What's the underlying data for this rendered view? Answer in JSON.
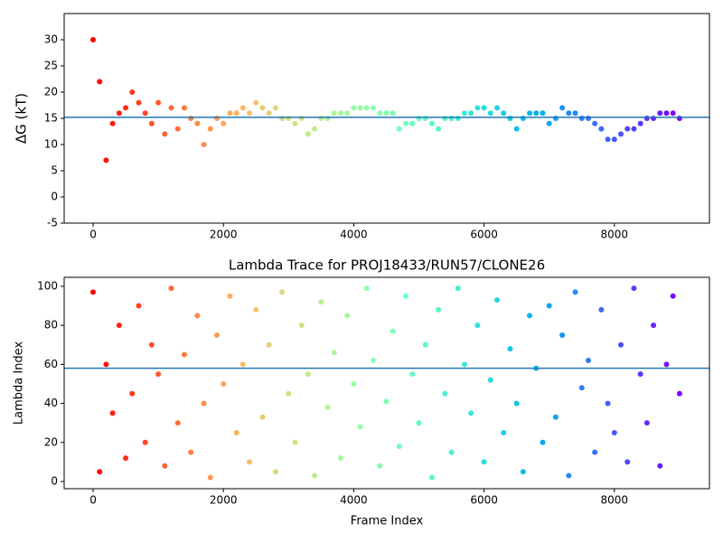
{
  "chart_data": [
    {
      "type": "scatter",
      "ylabel": "ΔG (kT)",
      "colormap": "rainbow",
      "x": [
        0,
        100,
        200,
        300,
        400,
        500,
        600,
        700,
        800,
        900,
        1000,
        1100,
        1200,
        1300,
        1400,
        1500,
        1600,
        1700,
        1800,
        1900,
        2000,
        2100,
        2200,
        2300,
        2400,
        2500,
        2600,
        2700,
        2800,
        2900,
        3000,
        3100,
        3200,
        3300,
        3400,
        3500,
        3600,
        3700,
        3800,
        3900,
        4000,
        4100,
        4200,
        4300,
        4400,
        4500,
        4600,
        4700,
        4800,
        4900,
        5000,
        5100,
        5200,
        5300,
        5400,
        5500,
        5600,
        5700,
        5800,
        5900,
        6000,
        6100,
        6200,
        6300,
        6400,
        6500,
        6600,
        6700,
        6800,
        6900,
        7000,
        7100,
        7200,
        7300,
        7400,
        7500,
        7600,
        7700,
        7800,
        7900,
        8000,
        8100,
        8200,
        8300,
        8400,
        8500,
        8600,
        8700,
        8800,
        8900,
        9000
      ],
      "values": [
        30,
        22,
        7,
        14,
        16,
        17,
        20,
        18,
        16,
        14,
        18,
        12,
        17,
        13,
        17,
        15,
        14,
        10,
        13,
        15,
        14,
        16,
        16,
        17,
        16,
        18,
        17,
        16,
        17,
        15,
        15,
        14,
        15,
        12,
        13,
        15,
        15,
        16,
        16,
        16,
        17,
        17,
        17,
        17,
        16,
        16,
        16,
        13,
        14,
        14,
        15,
        15,
        14,
        13,
        15,
        15,
        15,
        16,
        16,
        17,
        17,
        16,
        17,
        16,
        15,
        13,
        15,
        16,
        16,
        16,
        14,
        15,
        17,
        16,
        16,
        15,
        15,
        14,
        13,
        11,
        11,
        12,
        13,
        13,
        14,
        15,
        15,
        16,
        16,
        16,
        15
      ],
      "hline": 15.2,
      "hline_color": "#1f77b4",
      "xlim": [
        -444,
        9459
      ],
      "xticks": [
        0,
        2000,
        4000,
        6000,
        8000
      ],
      "ylim": [
        -5,
        35
      ],
      "yticks": [
        -5,
        0,
        5,
        10,
        15,
        20,
        25,
        30
      ]
    },
    {
      "type": "scatter",
      "title": "Lambda Trace for PROJ18433/RUN57/CLONE26",
      "xlabel": "Frame Index",
      "ylabel": "Lambda Index",
      "colormap": "rainbow",
      "x": [
        0,
        100,
        200,
        300,
        400,
        500,
        600,
        700,
        800,
        900,
        1000,
        1100,
        1200,
        1300,
        1400,
        1500,
        1600,
        1700,
        1800,
        1900,
        2000,
        2100,
        2200,
        2300,
        2400,
        2500,
        2600,
        2700,
        2800,
        2900,
        3000,
        3100,
        3200,
        3300,
        3400,
        3500,
        3600,
        3700,
        3800,
        3900,
        4000,
        4100,
        4200,
        4300,
        4400,
        4500,
        4600,
        4700,
        4800,
        4900,
        5000,
        5100,
        5200,
        5300,
        5400,
        5500,
        5600,
        5700,
        5800,
        5900,
        6000,
        6100,
        6200,
        6300,
        6400,
        6500,
        6600,
        6700,
        6800,
        6900,
        7000,
        7100,
        7200,
        7300,
        7400,
        7500,
        7600,
        7700,
        7800,
        7900,
        8000,
        8100,
        8200,
        8300,
        8400,
        8500,
        8600,
        8700,
        8800,
        8900,
        9000
      ],
      "values": [
        97,
        5,
        60,
        35,
        80,
        12,
        45,
        90,
        20,
        70,
        55,
        8,
        99,
        30,
        65,
        15,
        85,
        40,
        2,
        75,
        50,
        95,
        25,
        60,
        10,
        88,
        33,
        70,
        5,
        97,
        45,
        20,
        80,
        55,
        3,
        92,
        38,
        66,
        12,
        85,
        50,
        28,
        99,
        62,
        8,
        41,
        77,
        18,
        95,
        55,
        30,
        70,
        2,
        88,
        45,
        15,
        99,
        60,
        35,
        80,
        10,
        52,
        93,
        25,
        68,
        40,
        5,
        85,
        58,
        20,
        90,
        33,
        75,
        3,
        97,
        48,
        62,
        15,
        88,
        40,
        25,
        70,
        10,
        99,
        55,
        30,
        80,
        8,
        60,
        95,
        45
      ],
      "hline": 58,
      "hline_color": "#1f77b4",
      "xlim": [
        -444,
        9459
      ],
      "xticks": [
        0,
        2000,
        4000,
        6000,
        8000
      ],
      "ylim": [
        -3.7,
        104.6
      ],
      "yticks": [
        0,
        20,
        40,
        60,
        80,
        100
      ]
    }
  ]
}
